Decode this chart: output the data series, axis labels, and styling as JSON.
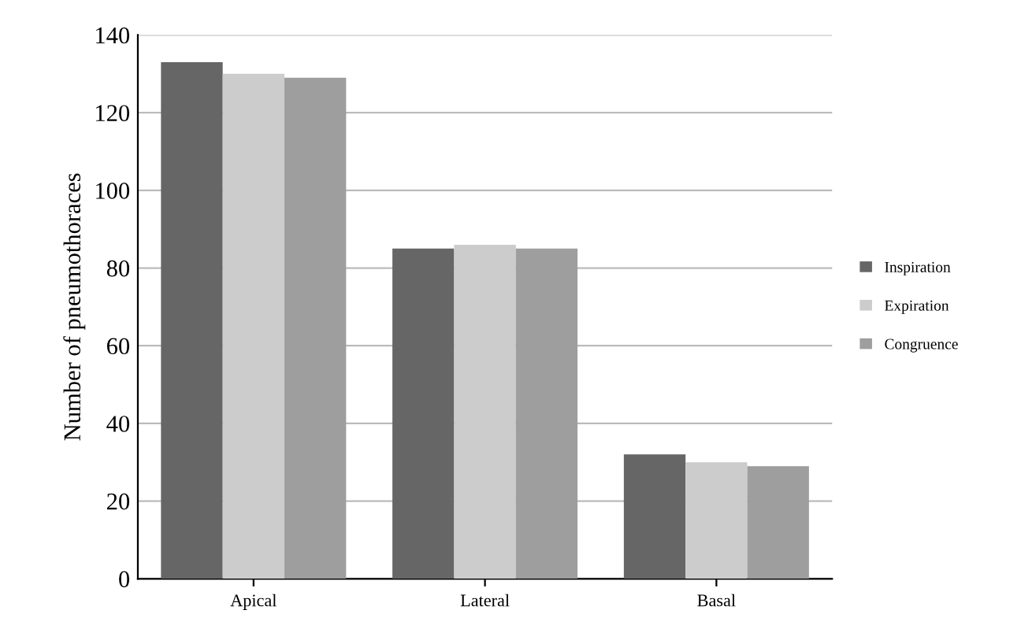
{
  "chart_data": {
    "type": "bar",
    "ylabel": "Number of pneumothoraces",
    "categories": [
      "Apical",
      "Lateral",
      "Basal"
    ],
    "series": [
      {
        "name": "Inspiration",
        "color": "#666666",
        "values": [
          133,
          85,
          32
        ]
      },
      {
        "name": "Expiration",
        "color": "#cccccc",
        "values": [
          130,
          86,
          30
        ]
      },
      {
        "name": "Congruence",
        "color": "#9e9e9e",
        "values": [
          129,
          85,
          29
        ]
      }
    ],
    "ylim": [
      0,
      140
    ],
    "yticks": [
      0,
      20,
      40,
      60,
      80,
      100,
      120,
      140
    ],
    "grid": "y",
    "legend": "right"
  }
}
